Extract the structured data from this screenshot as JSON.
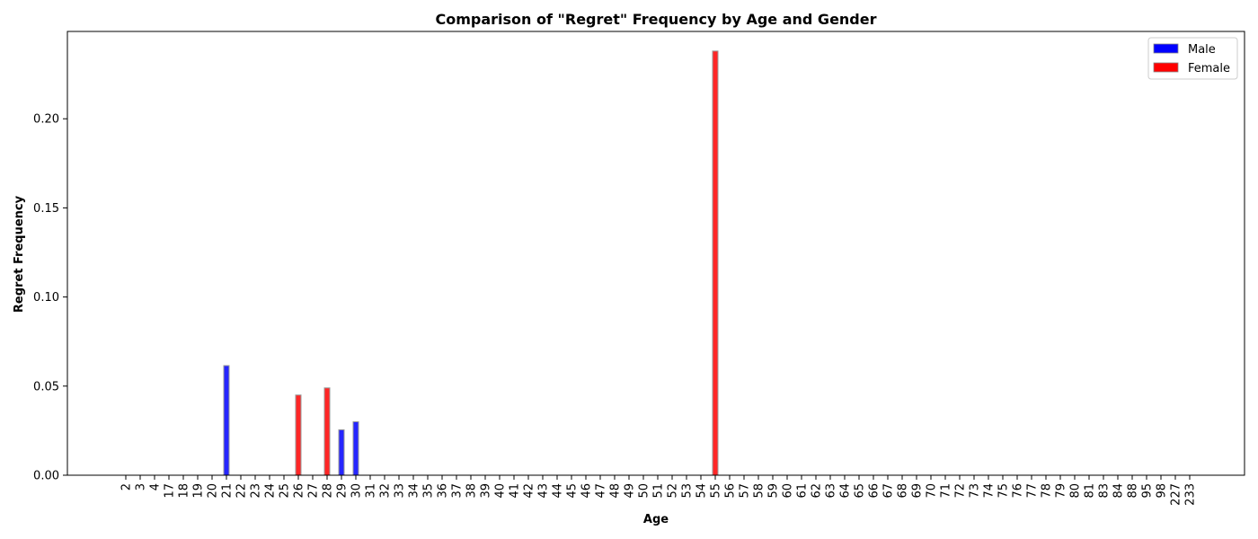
{
  "chart_data": {
    "type": "bar",
    "title": "Comparison of \"Regret\" Frequency by Age and Gender",
    "xlabel": "Age",
    "ylabel": "Regret Frequency",
    "ylim": [
      0,
      0.249
    ],
    "yticks": [
      "0.00",
      "0.05",
      "0.10",
      "0.15",
      "0.20"
    ],
    "grid": false,
    "legend_position": "top-right",
    "categories": [
      "2",
      "3",
      "4",
      "17",
      "18",
      "19",
      "20",
      "21",
      "22",
      "23",
      "24",
      "25",
      "26",
      "27",
      "28",
      "29",
      "30",
      "31",
      "32",
      "33",
      "34",
      "35",
      "36",
      "37",
      "38",
      "39",
      "40",
      "41",
      "42",
      "43",
      "44",
      "45",
      "46",
      "47",
      "48",
      "49",
      "50",
      "51",
      "52",
      "53",
      "54",
      "55",
      "56",
      "57",
      "58",
      "59",
      "60",
      "61",
      "62",
      "63",
      "64",
      "65",
      "66",
      "67",
      "68",
      "69",
      "70",
      "71",
      "72",
      "73",
      "74",
      "75",
      "76",
      "77",
      "78",
      "79",
      "80",
      "81",
      "83",
      "84",
      "88",
      "95",
      "98",
      "227",
      "233"
    ],
    "series": [
      {
        "name": "Male",
        "color": "#0000ff",
        "values": [
          0,
          0,
          0,
          0,
          0,
          0,
          0,
          0.0615,
          0,
          0,
          0,
          0,
          0,
          0,
          0,
          0.0255,
          0.03,
          0,
          0,
          0,
          0,
          0,
          0,
          0,
          0,
          0,
          0,
          0,
          0,
          0,
          0,
          0,
          0,
          0,
          0,
          0,
          0,
          0,
          0,
          0,
          0,
          0,
          0,
          0,
          0,
          0,
          0,
          0,
          0,
          0,
          0,
          0,
          0,
          0,
          0,
          0,
          0,
          0,
          0,
          0,
          0,
          0,
          0,
          0,
          0,
          0,
          0,
          0,
          0,
          0,
          0,
          0,
          0,
          0,
          0
        ]
      },
      {
        "name": "Female",
        "color": "#ff0000",
        "values": [
          0,
          0,
          0,
          0,
          0,
          0,
          0,
          0,
          0,
          0,
          0,
          0,
          0.045,
          0,
          0.049,
          0,
          0,
          0,
          0,
          0,
          0,
          0,
          0,
          0,
          0,
          0,
          0,
          0,
          0,
          0,
          0,
          0,
          0,
          0,
          0,
          0,
          0,
          0,
          0,
          0,
          0,
          0.238,
          0,
          0,
          0,
          0,
          0,
          0,
          0,
          0,
          0,
          0,
          0,
          0,
          0,
          0,
          0,
          0,
          0,
          0,
          0,
          0,
          0,
          0,
          0,
          0,
          0,
          0,
          0,
          0,
          0,
          0,
          0,
          0,
          0
        ]
      }
    ]
  }
}
